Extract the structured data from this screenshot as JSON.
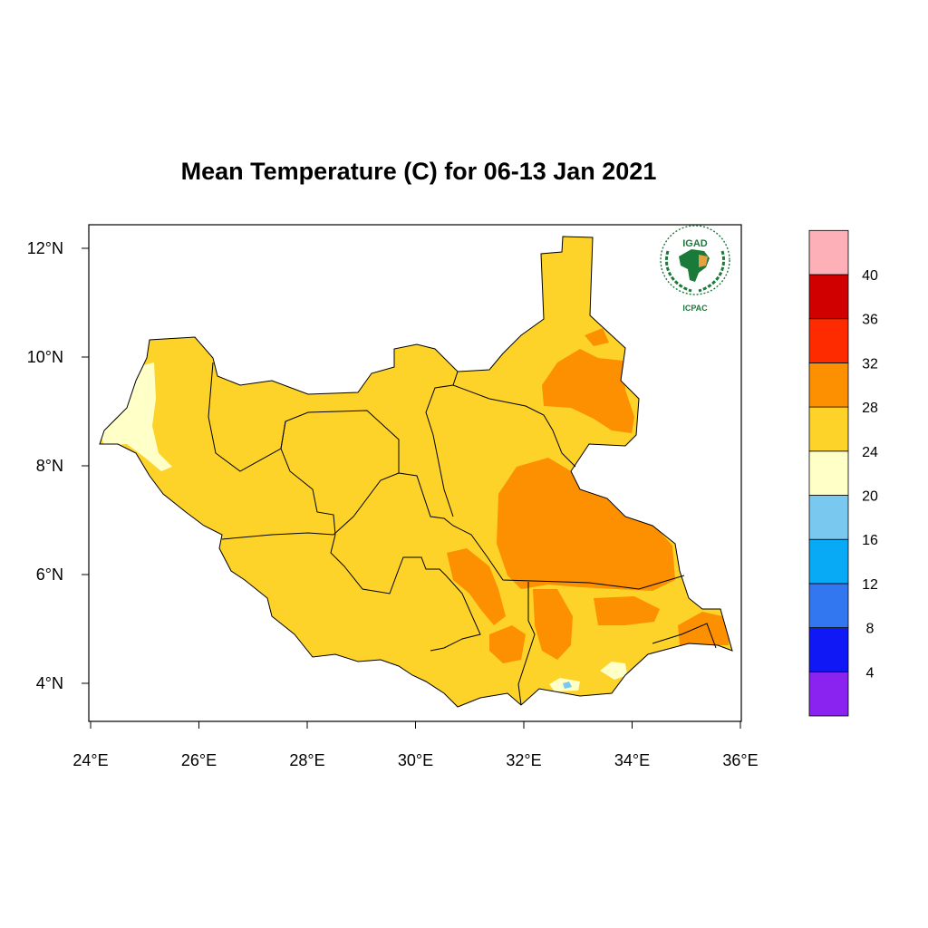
{
  "title": "Mean Temperature (C) for 06-13 Jan 2021",
  "logo": {
    "top_text": "IGAD",
    "bottom_text": "ICPAC",
    "colors": {
      "green": "#1a7a3a",
      "orange": "#e8a040"
    }
  },
  "map": {
    "x_ticks": [
      {
        "value": 24,
        "label": "24°E"
      },
      {
        "value": 26,
        "label": "26°E"
      },
      {
        "value": 28,
        "label": "28°E"
      },
      {
        "value": 30,
        "label": "30°E"
      },
      {
        "value": 32,
        "label": "32°E"
      },
      {
        "value": 34,
        "label": "34°E"
      },
      {
        "value": 36,
        "label": "36°E"
      }
    ],
    "y_ticks": [
      {
        "value": 4,
        "label": "4°N"
      },
      {
        "value": 6,
        "label": "6°N"
      },
      {
        "value": 8,
        "label": "8°N"
      },
      {
        "value": 10,
        "label": "10°N"
      },
      {
        "value": 12,
        "label": "12°N"
      }
    ],
    "lon_range": [
      24,
      36
    ],
    "lat_range": [
      3.3,
      12.4
    ]
  },
  "colorbar": {
    "labels": [
      "4",
      "8",
      "12",
      "16",
      "20",
      "24",
      "28",
      "32",
      "36",
      "40"
    ],
    "colors": [
      "#8a22f0",
      "#0f18f5",
      "#3377f0",
      "#08aaf5",
      "#78c8f0",
      "#ffffc8",
      "#fdd32a",
      "#fd9000",
      "#fe2b00",
      "#d00000",
      "#feb0b8"
    ]
  }
}
